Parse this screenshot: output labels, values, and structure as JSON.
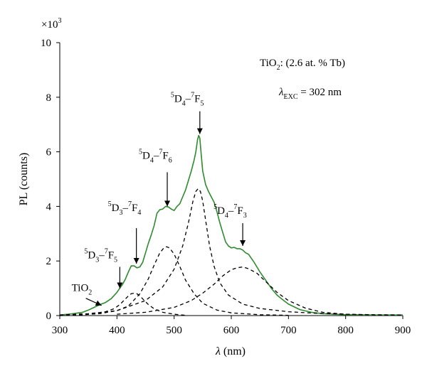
{
  "chart_data": {
    "type": "line",
    "xlabel": "λ",
    "xlabel_unit": "(nm)",
    "ylabel": "PL (counts)",
    "y_multiplier_base": "×10",
    "y_multiplier_exp": "3",
    "xlim": [
      300,
      900
    ],
    "ylim": [
      0,
      10
    ],
    "xticks": [
      300,
      400,
      500,
      600,
      700,
      800,
      900
    ],
    "yticks": [
      0,
      2,
      4,
      6,
      8,
      10
    ],
    "grid": false,
    "sample_label": {
      "prefix": "TiO",
      "sub": "2",
      "suffix": ": (2.6 at. % Tb)"
    },
    "excitation_label": {
      "symbol": "λ",
      "sub": "EXC",
      "value": " = 302 nm"
    },
    "series": [
      {
        "style": "solid",
        "color": "#2e8b2e",
        "x": [
          300,
          320,
          340,
          350,
          360,
          370,
          380,
          390,
          400,
          405,
          410,
          415,
          420,
          425,
          430,
          435,
          440,
          445,
          450,
          455,
          460,
          465,
          470,
          475,
          480,
          485,
          490,
          495,
          500,
          505,
          510,
          515,
          520,
          525,
          530,
          535,
          538,
          541,
          543,
          545,
          547,
          550,
          555,
          560,
          565,
          570,
          575,
          580,
          585,
          590,
          595,
          600,
          605,
          610,
          615,
          620,
          625,
          630,
          640,
          650,
          660,
          670,
          680,
          690,
          700,
          720,
          740,
          760,
          780,
          800,
          850,
          900
        ],
        "y": [
          0.02,
          0.06,
          0.12,
          0.2,
          0.3,
          0.4,
          0.48,
          0.62,
          0.85,
          1.0,
          1.15,
          1.35,
          1.6,
          1.82,
          1.82,
          1.75,
          1.78,
          1.95,
          2.3,
          2.65,
          2.95,
          3.3,
          3.75,
          3.88,
          3.9,
          4.0,
          3.98,
          3.9,
          3.85,
          4.0,
          4.1,
          4.35,
          4.6,
          4.95,
          5.3,
          5.7,
          6.0,
          6.45,
          6.6,
          6.5,
          6.0,
          5.3,
          4.8,
          4.55,
          4.35,
          4.15,
          3.8,
          3.4,
          3.05,
          2.7,
          2.55,
          2.48,
          2.5,
          2.45,
          2.45,
          2.4,
          2.3,
          2.25,
          1.95,
          1.6,
          1.3,
          1.0,
          0.75,
          0.58,
          0.42,
          0.22,
          0.12,
          0.07,
          0.05,
          0.03,
          0.02,
          0.02
        ]
      },
      {
        "style": "dashed",
        "color": "#000000",
        "x": [
          300,
          340,
          360,
          380,
          395,
          405,
          412,
          420,
          425,
          430,
          435,
          440,
          448,
          455,
          465,
          480,
          500,
          520
        ],
        "y": [
          0,
          0.03,
          0.07,
          0.14,
          0.25,
          0.4,
          0.55,
          0.72,
          0.8,
          0.82,
          0.8,
          0.72,
          0.55,
          0.4,
          0.25,
          0.12,
          0.05,
          0.01
        ]
      },
      {
        "style": "dashed",
        "color": "#000000",
        "x": [
          300,
          340,
          370,
          400,
          420,
          440,
          455,
          465,
          475,
          483,
          487,
          492,
          500,
          510,
          520,
          535,
          550,
          575,
          600,
          650,
          700
        ],
        "y": [
          0,
          0.03,
          0.07,
          0.18,
          0.35,
          0.8,
          1.35,
          1.85,
          2.3,
          2.5,
          2.52,
          2.48,
          2.25,
          1.8,
          1.3,
          0.8,
          0.45,
          0.2,
          0.1,
          0.03,
          0.01
        ]
      },
      {
        "style": "dashed",
        "color": "#000000",
        "x": [
          300,
          350,
          400,
          450,
          480,
          500,
          515,
          525,
          533,
          538,
          542,
          546,
          550,
          555,
          562,
          570,
          580,
          595,
          620,
          650,
          700,
          750,
          800,
          850,
          900
        ],
        "y": [
          0.02,
          0.07,
          0.18,
          0.55,
          1.05,
          1.7,
          2.55,
          3.4,
          4.2,
          4.55,
          4.65,
          4.55,
          4.2,
          3.5,
          2.55,
          1.8,
          1.2,
          0.75,
          0.42,
          0.26,
          0.14,
          0.08,
          0.05,
          0.03,
          0.02
        ]
      },
      {
        "style": "dashed",
        "color": "#000000",
        "x": [
          400,
          450,
          500,
          530,
          550,
          570,
          585,
          600,
          610,
          620,
          630,
          645,
          660,
          680,
          700,
          730,
          760,
          800,
          850,
          900
        ],
        "y": [
          0.05,
          0.12,
          0.3,
          0.55,
          0.82,
          1.15,
          1.45,
          1.68,
          1.75,
          1.78,
          1.72,
          1.55,
          1.25,
          0.85,
          0.55,
          0.27,
          0.12,
          0.05,
          0.02,
          0.01
        ]
      }
    ],
    "annotations": [
      {
        "base": "TiO",
        "sub": "2",
        "x": 373,
        "y": 0.32
      },
      {
        "lhs_sup": "5",
        "lhs": "D",
        "lhs_sub": "3",
        "rhs_sup": "7",
        "rhs": "F",
        "rhs_sub": "5",
        "x": 405,
        "y": 0.95
      },
      {
        "lhs_sup": "5",
        "lhs": "D",
        "lhs_sub": "3",
        "rhs_sup": "7",
        "rhs": "F",
        "rhs_sub": "4",
        "x": 434,
        "y": 1.85
      },
      {
        "lhs_sup": "5",
        "lhs": "D",
        "lhs_sub": "4",
        "rhs_sup": "7",
        "rhs": "F",
        "rhs_sub": "6",
        "x": 488,
        "y": 3.95
      },
      {
        "lhs_sup": "5",
        "lhs": "D",
        "lhs_sub": "4",
        "rhs_sup": "7",
        "rhs": "F",
        "rhs_sub": "5",
        "x": 545,
        "y": 6.6
      },
      {
        "lhs_sup": "5",
        "lhs": "D",
        "lhs_sub": "4",
        "rhs_sup": "7",
        "rhs": "F",
        "rhs_sub": "3",
        "x": 620,
        "y": 2.5
      }
    ]
  }
}
